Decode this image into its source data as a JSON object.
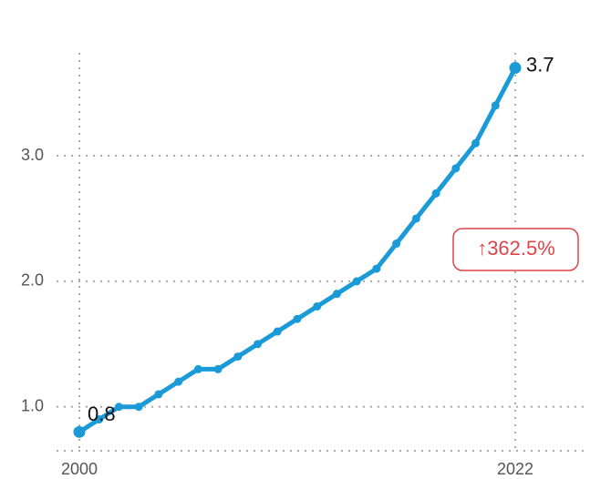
{
  "chart_data": {
    "type": "line",
    "x": [
      2000,
      2001,
      2002,
      2003,
      2004,
      2005,
      2006,
      2007,
      2008,
      2009,
      2010,
      2011,
      2012,
      2013,
      2014,
      2015,
      2016,
      2017,
      2018,
      2019,
      2020,
      2021,
      2022
    ],
    "series": [
      {
        "color": "#1a9bd7",
        "values": [
          0.8,
          0.9,
          1.0,
          1.0,
          1.1,
          1.2,
          1.3,
          1.3,
          1.4,
          1.5,
          1.6,
          1.7,
          1.8,
          1.9,
          2.0,
          2.1,
          2.3,
          2.5,
          2.7,
          2.9,
          3.1,
          3.4,
          3.7
        ]
      }
    ],
    "xlim": [
      1998.85,
      2025.45
    ],
    "xticks": [
      2000,
      2022
    ],
    "ylim": [
      0.65,
      3.82
    ],
    "yticks": [
      {
        "value": 1,
        "label": "1.0"
      },
      {
        "value": 2,
        "label": "2.0"
      },
      {
        "value": 3,
        "label": "3.0"
      }
    ],
    "grid": true,
    "annotation": "↑362.5%"
  }
}
